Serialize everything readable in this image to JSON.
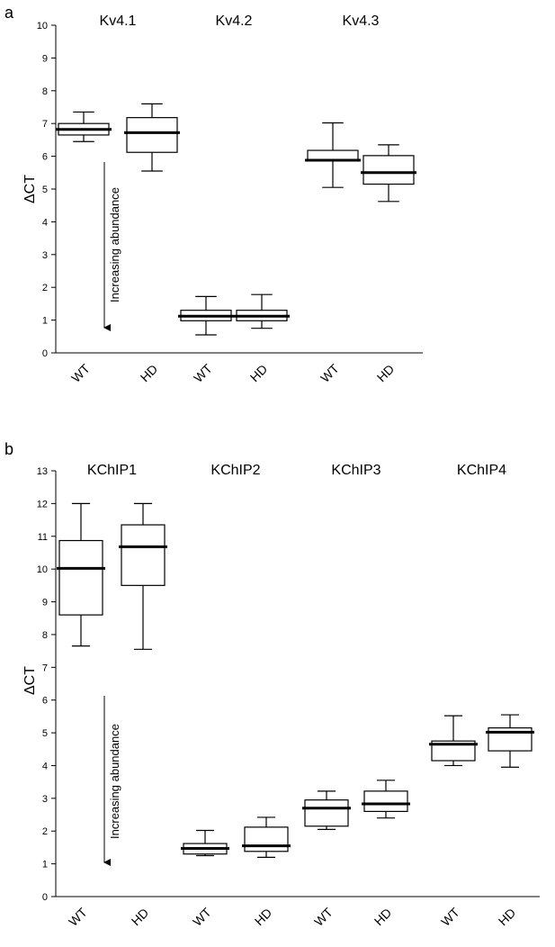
{
  "chart_data": [
    {
      "type": "box",
      "panel_label": "a",
      "ylabel": "ΔCT",
      "ylim": [
        0,
        10
      ],
      "yticks": [
        0,
        1,
        2,
        3,
        4,
        5,
        6,
        7,
        8,
        9,
        10
      ],
      "groups": [
        "Kv4.1",
        "Kv4.2",
        "Kv4.3"
      ],
      "annotation": "Increasing abundance",
      "boxes": [
        {
          "group": "Kv4.1",
          "label": "WT",
          "min": 6.45,
          "q1": 6.65,
          "median": 6.82,
          "q3": 7.0,
          "max": 7.35
        },
        {
          "group": "Kv4.1",
          "label": "HD",
          "min": 5.55,
          "q1": 6.12,
          "median": 6.72,
          "q3": 7.18,
          "max": 7.6
        },
        {
          "group": "Kv4.2",
          "label": "WT",
          "min": 0.55,
          "q1": 0.98,
          "median": 1.12,
          "q3": 1.3,
          "max": 1.72
        },
        {
          "group": "Kv4.2",
          "label": "HD",
          "min": 0.75,
          "q1": 0.98,
          "median": 1.12,
          "q3": 1.3,
          "max": 1.78
        },
        {
          "group": "Kv4.3",
          "label": "WT",
          "min": 5.05,
          "q1": 5.88,
          "median": 5.88,
          "q3": 6.18,
          "max": 7.02
        },
        {
          "group": "Kv4.3",
          "label": "HD",
          "min": 4.62,
          "q1": 5.15,
          "median": 5.5,
          "q3": 6.02,
          "max": 6.35
        }
      ]
    },
    {
      "type": "box",
      "panel_label": "b",
      "ylabel": "ΔCT",
      "ylim": [
        0,
        13
      ],
      "yticks": [
        0,
        1,
        2,
        3,
        4,
        5,
        6,
        7,
        8,
        9,
        10,
        11,
        12,
        13
      ],
      "groups": [
        "KChIP1",
        "KChIP2",
        "KChIP3",
        "KChIP4"
      ],
      "annotation": "Increasing abundance",
      "boxes": [
        {
          "group": "KChIP1",
          "label": "WT",
          "min": 7.65,
          "q1": 8.6,
          "median": 10.02,
          "q3": 10.87,
          "max": 12.0
        },
        {
          "group": "KChIP1",
          "label": "HD",
          "min": 7.55,
          "q1": 9.5,
          "median": 10.68,
          "q3": 11.35,
          "max": 12.0
        },
        {
          "group": "KChIP2",
          "label": "WT",
          "min": 1.25,
          "q1": 1.3,
          "median": 1.47,
          "q3": 1.62,
          "max": 2.02
        },
        {
          "group": "KChIP2",
          "label": "HD",
          "min": 1.2,
          "q1": 1.38,
          "median": 1.55,
          "q3": 2.12,
          "max": 2.42
        },
        {
          "group": "KChIP3",
          "label": "WT",
          "min": 2.05,
          "q1": 2.15,
          "median": 2.7,
          "q3": 2.95,
          "max": 3.22
        },
        {
          "group": "KChIP3",
          "label": "HD",
          "min": 2.4,
          "q1": 2.6,
          "median": 2.83,
          "q3": 3.22,
          "max": 3.55
        },
        {
          "group": "KChIP4",
          "label": "WT",
          "min": 4.0,
          "q1": 4.15,
          "median": 4.65,
          "q3": 4.75,
          "max": 5.52
        },
        {
          "group": "KChIP4",
          "label": "HD",
          "min": 3.95,
          "q1": 4.45,
          "median": 5.02,
          "q3": 5.15,
          "max": 5.55
        }
      ]
    }
  ]
}
